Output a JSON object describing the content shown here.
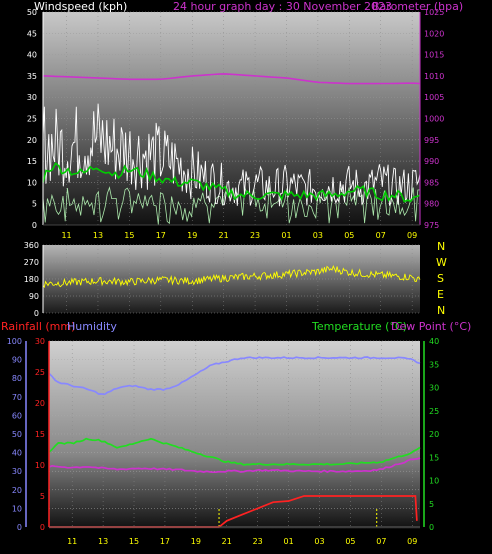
{
  "header": {
    "left": "Windspeed (kph)",
    "center": "24 hour graph day : 30 November 2023",
    "right": "Barometer (hpa)"
  },
  "compass": [
    "N",
    "W",
    "S",
    "E",
    "N"
  ],
  "bottom_header": {
    "rain": "Rainfall (mm)",
    "humidity": "Humidity",
    "temperature": "Temperature (°C)",
    "dewpoint": "Dew Point (°C)"
  },
  "colors": {
    "wind": "#ffffff",
    "avg_wind": "#00cc00",
    "gust_low": "#bbffbb",
    "barometer": "#cc33cc",
    "direction": "#ffff00",
    "rain": "#ff2222",
    "humidity": "#8888ff",
    "temperature": "#22dd22",
    "dewpoint": "#cc33cc",
    "axis_yellow": "#ffff00"
  },
  "chart_data": [
    {
      "type": "line",
      "panel": "wind-barometer",
      "x_ticks": [
        "11",
        "13",
        "15",
        "17",
        "19",
        "21",
        "23",
        "01",
        "03",
        "05",
        "07",
        "09"
      ],
      "y_left_ticks": [
        0,
        5,
        10,
        15,
        20,
        25,
        30,
        35,
        40,
        45,
        50
      ],
      "y_left_label": "Windspeed (kph)",
      "ylim_left": [
        0,
        50
      ],
      "y_right_ticks": [
        975,
        980,
        985,
        990,
        995,
        1000,
        1005,
        1010,
        1015,
        1020,
        1025
      ],
      "y_right_label": "Barometer (hpa)",
      "ylim_right": [
        975,
        1025
      ],
      "series": [
        {
          "name": "Windspeed",
          "kind": "gust",
          "x": [
            9.5,
            10,
            11,
            12,
            13,
            14,
            15,
            16,
            17,
            18,
            19,
            20,
            21,
            22,
            23,
            24,
            25,
            26,
            27,
            28,
            29,
            30,
            31,
            32,
            33,
            33.5
          ],
          "values": [
            27,
            26,
            25,
            27,
            28,
            25,
            24,
            23,
            22,
            20,
            17,
            15,
            13,
            12,
            13,
            12,
            13,
            12,
            12,
            13,
            13,
            12,
            14,
            12,
            13,
            14
          ]
        },
        {
          "name": "Average windspeed",
          "kind": "avg",
          "x": [
            9.5,
            10,
            11,
            12,
            13,
            14,
            15,
            16,
            17,
            18,
            19,
            20,
            21,
            22,
            23,
            24,
            25,
            26,
            27,
            28,
            29,
            30,
            31,
            32,
            33,
            33.5
          ],
          "values": [
            11,
            14,
            13,
            12,
            14,
            12,
            13,
            12,
            11,
            10,
            10,
            9,
            8,
            7,
            7,
            7,
            7,
            7,
            7,
            7,
            8,
            8,
            7,
            7,
            6,
            7
          ]
        },
        {
          "name": "Barometer",
          "kind": "baro",
          "x": [
            9.5,
            11,
            13,
            15,
            17,
            19,
            21,
            23,
            25,
            27,
            29,
            31,
            33,
            33.5
          ],
          "values": [
            1010,
            1009.8,
            1009.5,
            1009.2,
            1009.2,
            1010,
            1010.5,
            1010,
            1009.5,
            1008.5,
            1008.2,
            1008.2,
            1008.3,
            1008.2
          ]
        }
      ]
    },
    {
      "type": "line",
      "panel": "wind-direction",
      "x_ticks": [
        "11",
        "13",
        "15",
        "17",
        "19",
        "21",
        "23",
        "01",
        "03",
        "05",
        "07",
        "09"
      ],
      "y_ticks": [
        0,
        90,
        180,
        270,
        360
      ],
      "ylim": [
        0,
        360
      ],
      "series": [
        {
          "name": "Wind direction",
          "x": [
            9.5,
            11,
            13,
            15,
            17,
            19,
            21,
            23,
            25,
            27,
            28,
            29,
            31,
            33,
            33.5
          ],
          "values": [
            155,
            160,
            170,
            165,
            175,
            170,
            185,
            195,
            205,
            220,
            235,
            215,
            200,
            190,
            170
          ]
        }
      ]
    },
    {
      "type": "line",
      "panel": "temperature-humidity-rain",
      "x_ticks": [
        "11",
        "13",
        "15",
        "17",
        "19",
        "21",
        "23",
        "01",
        "03",
        "05",
        "07",
        "09"
      ],
      "y_left_ticks": [
        0,
        10,
        20,
        30,
        40,
        50,
        60,
        70,
        80,
        90,
        100
      ],
      "y_left_label": "Humidity",
      "ylim_left": [
        0,
        100
      ],
      "y_rain_ticks": [
        0,
        5,
        10,
        15,
        20,
        25,
        30
      ],
      "y_rain_label": "Rainfall (mm)",
      "ylim_rain": [
        0,
        30
      ],
      "y_right_ticks": [
        0,
        5,
        10,
        15,
        20,
        25,
        30,
        35,
        40
      ],
      "y_right_label": "Temperature (°C)",
      "ylim_right": [
        0,
        40
      ],
      "series": [
        {
          "name": "Humidity",
          "axis": "left",
          "x": [
            9.5,
            10,
            11,
            12,
            13,
            14,
            15,
            16,
            17,
            18,
            19,
            20,
            21,
            22,
            23,
            24,
            25,
            26,
            27,
            28,
            29,
            30,
            31,
            32,
            33,
            33.5
          ],
          "values": [
            83,
            78,
            76,
            74,
            71,
            75,
            76,
            74,
            74,
            77,
            82,
            87,
            89,
            91,
            91,
            91,
            91,
            91,
            91,
            91,
            91,
            91,
            91,
            91,
            90,
            88
          ]
        },
        {
          "name": "Temperature",
          "axis": "right",
          "x": [
            9.5,
            10,
            11,
            12,
            13,
            14,
            15,
            16,
            17,
            18,
            19,
            20,
            21,
            22,
            23,
            24,
            25,
            26,
            27,
            28,
            29,
            30,
            31,
            32,
            33,
            33.5
          ],
          "values": [
            16,
            18,
            18,
            19,
            18.5,
            17,
            18,
            19,
            18,
            17,
            16,
            15,
            14,
            13.5,
            13.5,
            13.5,
            13.5,
            13.5,
            13.5,
            13.5,
            13.6,
            13.8,
            14,
            15,
            16,
            17
          ]
        },
        {
          "name": "Dew Point",
          "axis": "right",
          "x": [
            9.5,
            10,
            11,
            12,
            13,
            14,
            15,
            16,
            17,
            18,
            19,
            20,
            21,
            22,
            23,
            24,
            25,
            26,
            27,
            28,
            29,
            30,
            31,
            32,
            33,
            33.5
          ],
          "values": [
            13,
            13,
            12.8,
            13,
            12.6,
            12.4,
            12.6,
            12.6,
            12.4,
            12.3,
            12,
            11.9,
            12,
            12,
            12.2,
            12.2,
            12.1,
            12,
            12,
            12,
            12,
            12.1,
            12.4,
            13.5,
            14.5,
            15
          ]
        },
        {
          "name": "Rainfall",
          "axis": "rain",
          "x": [
            9.5,
            20.5,
            21,
            22,
            23,
            24,
            25,
            26,
            27,
            28,
            29,
            30,
            31,
            32,
            33,
            33.2,
            33.3
          ],
          "values": [
            0,
            0,
            1,
            2,
            3,
            4,
            4.2,
            5,
            5,
            5,
            5,
            5,
            5,
            5,
            5,
            5,
            1
          ]
        }
      ]
    }
  ]
}
